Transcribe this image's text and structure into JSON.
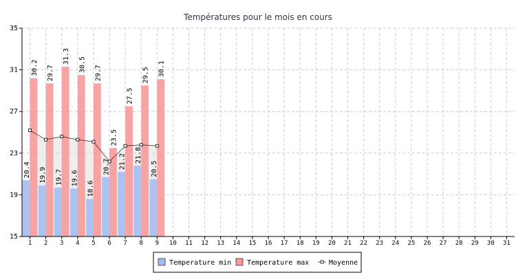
{
  "chart_data": {
    "type": "bar",
    "title": "Températures pour le mois en cours",
    "categories": [
      "1",
      "2",
      "3",
      "4",
      "5",
      "6",
      "7",
      "8",
      "9",
      "10",
      "11",
      "12",
      "13",
      "14",
      "15",
      "16",
      "17",
      "18",
      "19",
      "20",
      "21",
      "22",
      "23",
      "24",
      "25",
      "26",
      "27",
      "28",
      "29",
      "30",
      "31"
    ],
    "series": [
      {
        "name": "Temperature min",
        "color": "#a4bcf0",
        "values": [
          20.4,
          19.9,
          19.7,
          19.6,
          18.6,
          20.7,
          21.2,
          21.8,
          20.5,
          null,
          null,
          null,
          null,
          null,
          null,
          null,
          null,
          null,
          null,
          null,
          null,
          null,
          null,
          null,
          null,
          null,
          null,
          null,
          null,
          null,
          null
        ]
      },
      {
        "name": "Temperature max",
        "color": "#f89a9a",
        "values": [
          30.2,
          29.7,
          31.3,
          30.5,
          29.7,
          23.5,
          27.5,
          29.5,
          30.1,
          null,
          null,
          null,
          null,
          null,
          null,
          null,
          null,
          null,
          null,
          null,
          null,
          null,
          null,
          null,
          null,
          null,
          null,
          null,
          null,
          null,
          null
        ]
      },
      {
        "name": "Moyenne",
        "type": "line",
        "color": "#000000",
        "values": [
          25.2,
          24.3,
          24.6,
          24.3,
          24.1,
          22.2,
          23.7,
          23.8,
          23.7,
          null,
          null,
          null,
          null,
          null,
          null,
          null,
          null,
          null,
          null,
          null,
          null,
          null,
          null,
          null,
          null,
          null,
          null,
          null,
          null,
          null,
          null
        ]
      }
    ],
    "ylim": [
      15,
      35
    ],
    "yticks": [
      15,
      19,
      23,
      27,
      31,
      35
    ],
    "grid": true,
    "legend": "bottom"
  }
}
